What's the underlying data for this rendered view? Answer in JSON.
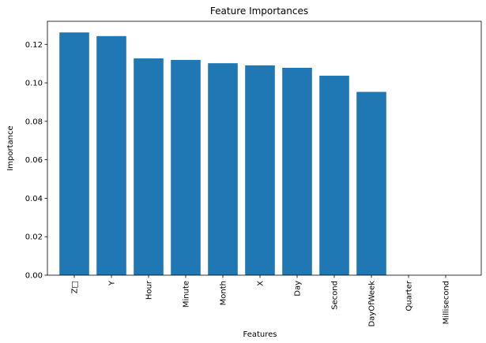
{
  "chart_data": {
    "type": "bar",
    "title": "Feature Importances",
    "xlabel": "Features",
    "ylabel": "Importance",
    "categories": [
      "Z□",
      "Y",
      "Hour",
      "Minute",
      "Month",
      "X",
      "Day",
      "Second",
      "DayOfWeek",
      "Quarter",
      "Millisecond"
    ],
    "values": [
      0.1262,
      0.1243,
      0.1127,
      0.1119,
      0.1102,
      0.1091,
      0.1078,
      0.1037,
      0.0953,
      0.0,
      0.0
    ],
    "ylim": [
      0,
      0.132
    ],
    "yticks": [
      "0.00",
      "0.02",
      "0.04",
      "0.06",
      "0.08",
      "0.10",
      "0.12"
    ],
    "tick_label_rotation": "vertical",
    "bar_color": "#1f77b4",
    "grid": false,
    "legend": "none"
  }
}
